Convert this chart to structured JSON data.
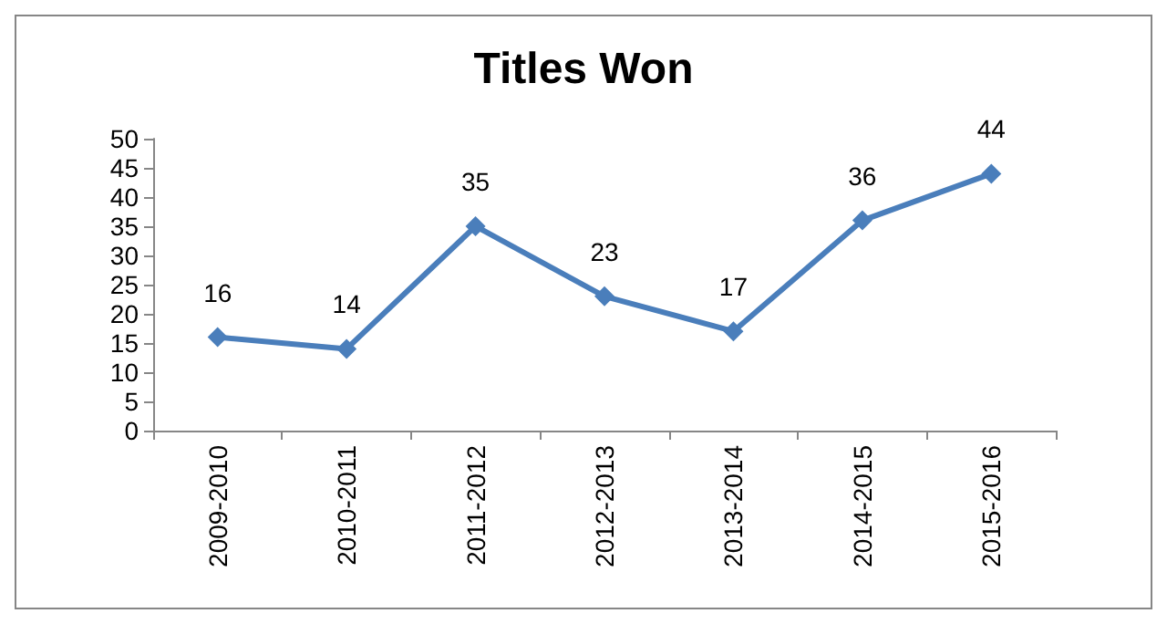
{
  "chart_data": {
    "type": "line",
    "title": "Titles Won",
    "categories": [
      "2009-2010",
      "2010-2011",
      "2011-2012",
      "2012-2013",
      "2013-2014",
      "2014-2015",
      "2015-2016"
    ],
    "series": [
      {
        "color": "#4a7ebb",
        "values": [
          16,
          14,
          35,
          23,
          17,
          36,
          44
        ]
      }
    ],
    "ylim": [
      0,
      50
    ],
    "yticks": [
      0,
      5,
      10,
      15,
      20,
      25,
      30,
      35,
      40,
      45,
      50
    ],
    "grid": false,
    "marker": "diamond",
    "line_style": "solid",
    "data_labels": true
  }
}
